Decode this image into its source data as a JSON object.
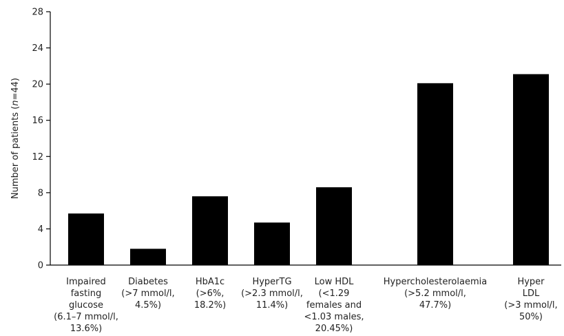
{
  "chart_data": {
    "type": "bar",
    "title": "",
    "xlabel": "",
    "ylabel_prefix": "Number of patients (",
    "ylabel_italic": "n",
    "ylabel_suffix": "=44)",
    "ylim": [
      0,
      28
    ],
    "yticks": [
      "0",
      "4",
      "8",
      "12",
      "16",
      "20",
      "24",
      "28"
    ],
    "categories": [
      [
        "Impaired",
        "fasting",
        "glucose",
        "(6.1–7 mmol/l,",
        "13.6%)"
      ],
      [
        "Diabetes",
        "(>7 mmol/l,",
        "4.5%)"
      ],
      [
        "HbA1c",
        "(>6%,",
        "18.2%)"
      ],
      [
        "HyperTG",
        "(>2.3 mmol/l,",
        "11.4%)"
      ],
      [
        "Low HDL",
        "(<1.29",
        "females and",
        "<1.03 males,",
        "20.45%)"
      ],
      [
        "Hypercholesterolaemia",
        "(>5.2 mmol/l,",
        "47.7%)"
      ],
      [
        "Hyper",
        "LDL",
        "(>3 mmol/l,",
        "50%)"
      ]
    ],
    "values": [
      5.7,
      1.8,
      7.6,
      4.7,
      8.6,
      20.1,
      21.1
    ],
    "grid": false,
    "bar_color": "#000000"
  }
}
